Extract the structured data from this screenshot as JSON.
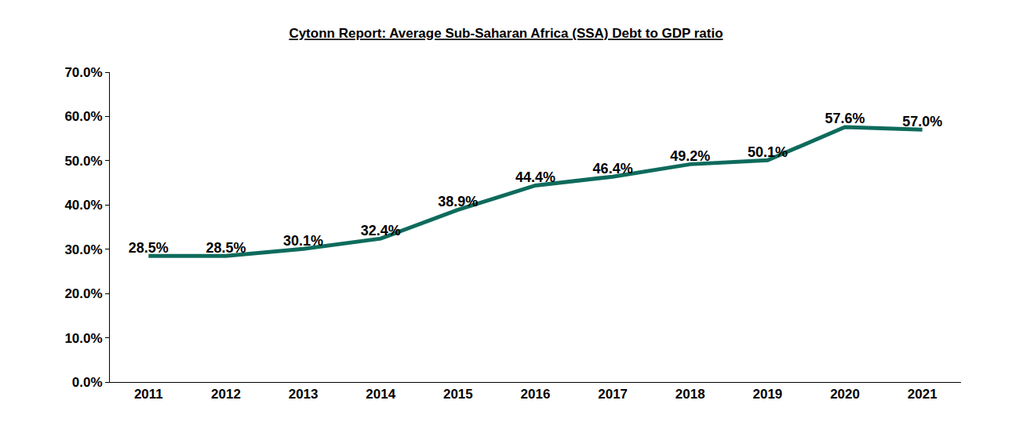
{
  "chart_data": {
    "type": "line",
    "title": "Cytonn Report: Average Sub-Saharan Africa (SSA) Debt to GDP ratio",
    "categories": [
      "2011",
      "2012",
      "2013",
      "2014",
      "2015",
      "2016",
      "2017",
      "2018",
      "2019",
      "2020",
      "2021"
    ],
    "values": [
      28.5,
      28.5,
      30.1,
      32.4,
      38.9,
      44.4,
      46.4,
      49.2,
      50.1,
      57.6,
      57.0
    ],
    "value_labels": [
      "28.5%",
      "28.5%",
      "30.1%",
      "32.4%",
      "38.9%",
      "44.4%",
      "46.4%",
      "49.2%",
      "50.1%",
      "57.6%",
      "57.0%"
    ],
    "color": "#0e6b5c",
    "ylim": [
      0,
      70
    ],
    "yticks": [
      {
        "value": 0,
        "label": "0.0%"
      },
      {
        "value": 10,
        "label": "10.0%"
      },
      {
        "value": 20,
        "label": "20.0%"
      },
      {
        "value": 30,
        "label": "30.0%"
      },
      {
        "value": 40,
        "label": "40.0%"
      },
      {
        "value": 50,
        "label": "50.0%"
      },
      {
        "value": 60,
        "label": "60.0%"
      },
      {
        "value": 70,
        "label": "70.0%"
      }
    ],
    "grid": false,
    "data_labels": true
  }
}
